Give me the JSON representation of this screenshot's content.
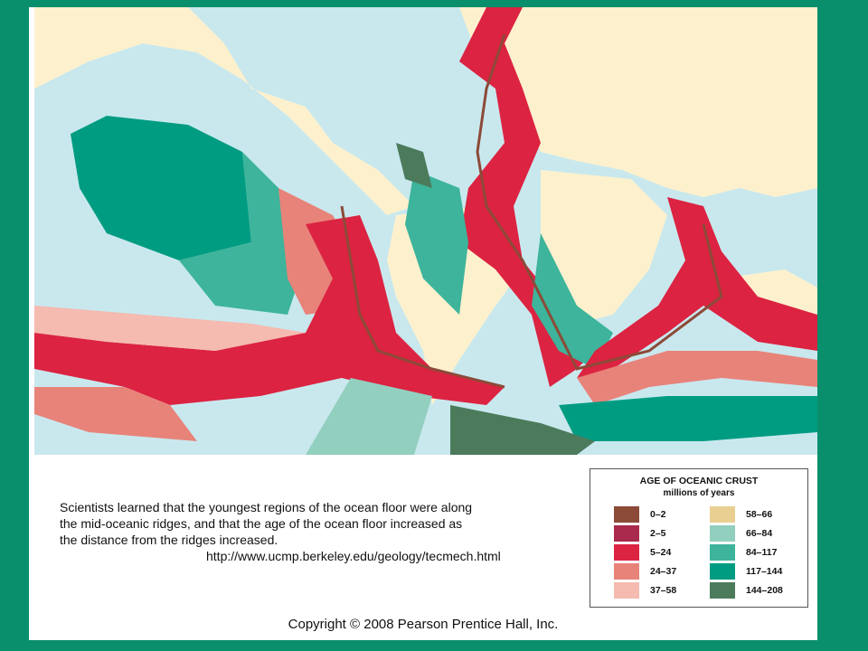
{
  "caption": {
    "lines": [
      "Scientists learned that the youngest regions of the ocean floor were along",
      "the mid-oceanic ridges, and that the age of the ocean floor increased as",
      "the distance from the ridges increased."
    ],
    "url": "http://www.ucmp.berkeley.edu/geology/tecmech.html"
  },
  "legend": {
    "title": "AGE OF OCEANIC CRUST",
    "subtitle": "millions of years",
    "items": [
      {
        "label": "0–2",
        "color": "#8c4a38"
      },
      {
        "label": "2–5",
        "color": "#a92a4c"
      },
      {
        "label": "5–24",
        "color": "#dc2342"
      },
      {
        "label": "24–37",
        "color": "#e8837a"
      },
      {
        "label": "37–58",
        "color": "#f5bab0"
      },
      {
        "label": "58–66",
        "color": "#e9d092"
      },
      {
        "label": "66–84",
        "color": "#92cfbf"
      },
      {
        "label": "84–117",
        "color": "#3db49b"
      },
      {
        "label": "117–144",
        "color": "#009c82"
      },
      {
        "label": "144–208",
        "color": "#4c7b5c"
      }
    ]
  },
  "footer": {
    "copyright": "Copyright © 2008 Pearson Prentice Hall, Inc."
  }
}
